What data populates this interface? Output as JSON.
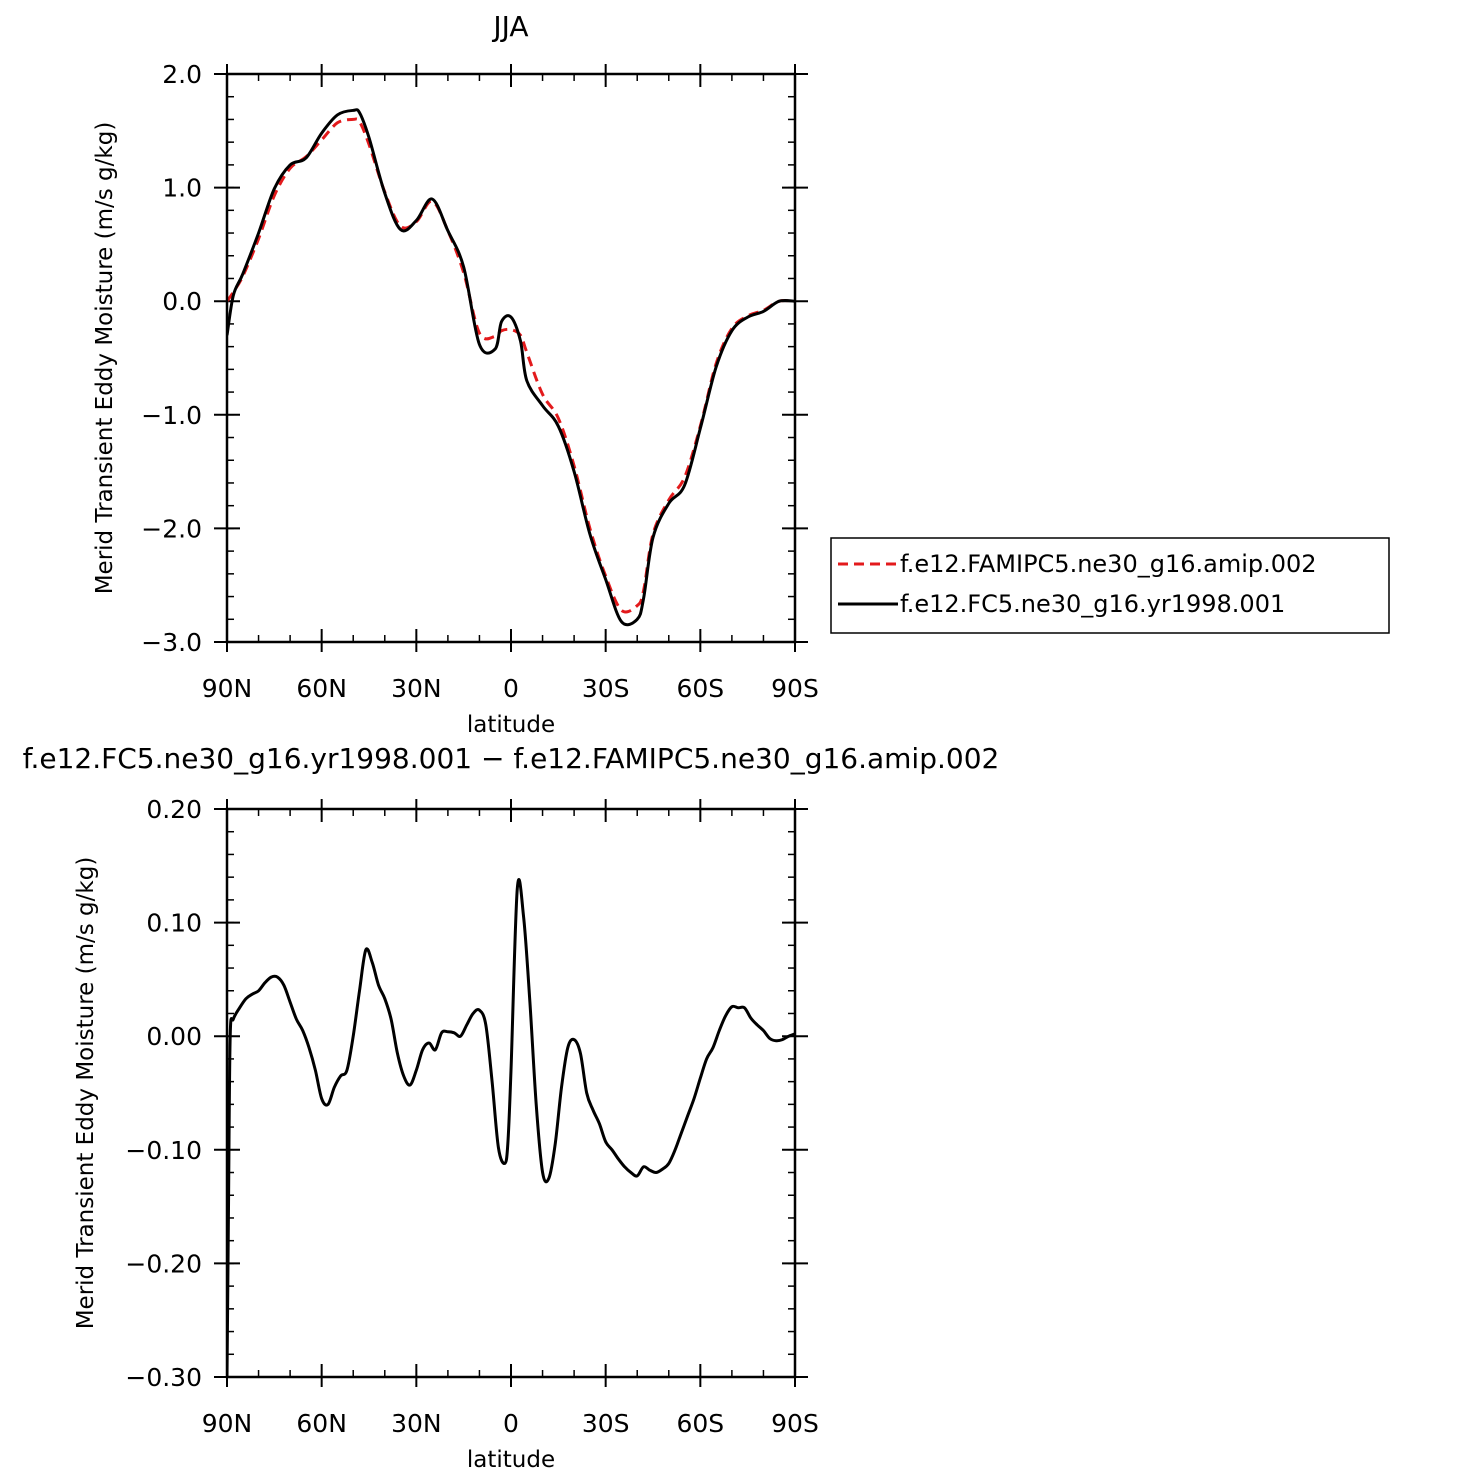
{
  "chart_data": [
    {
      "type": "line",
      "title": "JJA",
      "xlabel": "latitude",
      "ylabel": "Merid Transient Eddy Moisture (m/s g/kg)",
      "xlim": [
        90,
        -90
      ],
      "ylim": [
        -3.0,
        2.0
      ],
      "x_ticks": [
        90,
        60,
        30,
        0,
        -30,
        -60,
        -90
      ],
      "x_tick_labels": [
        "90N",
        "60N",
        "30N",
        "0",
        "30S",
        "60S",
        "90S"
      ],
      "y_ticks": [
        2.0,
        1.0,
        0.0,
        -1.0,
        -2.0,
        -3.0
      ],
      "y_tick_labels": [
        "2.0",
        "1.0",
        "0.0",
        "−1.0",
        "−2.0",
        "−3.0"
      ],
      "grid": false,
      "legend_position": "right",
      "series": [
        {
          "name": "f.e12.FAMIPC5.ne30_g16.amip.002",
          "color": "#e31a1c",
          "dash": "dashed",
          "x": [
            90,
            88,
            85,
            80,
            75,
            70,
            65,
            60,
            55,
            50,
            48,
            45,
            40,
            35,
            30,
            25,
            20,
            15,
            10,
            5,
            3,
            0,
            -3,
            -5,
            -10,
            -15,
            -20,
            -25,
            -30,
            -35,
            -40,
            -42,
            -45,
            -50,
            -55,
            -60,
            -65,
            -70,
            -75,
            -80,
            -85,
            -90
          ],
          "y": [
            0.0,
            0.08,
            0.22,
            0.55,
            0.93,
            1.17,
            1.27,
            1.42,
            1.57,
            1.6,
            1.58,
            1.38,
            0.96,
            0.66,
            0.7,
            0.88,
            0.62,
            0.25,
            -0.28,
            -0.31,
            -0.26,
            -0.25,
            -0.3,
            -0.45,
            -0.82,
            -1.03,
            -1.45,
            -2.0,
            -2.42,
            -2.72,
            -2.68,
            -2.55,
            -2.05,
            -1.75,
            -1.55,
            -1.1,
            -0.55,
            -0.24,
            -0.13,
            -0.08,
            0.0,
            0.0
          ]
        },
        {
          "name": "f.e12.FC5.ne30_g16.yr1998.001",
          "color": "#000000",
          "dash": "solid",
          "x": [
            90,
            88,
            85,
            80,
            75,
            70,
            65,
            60,
            55,
            50,
            48,
            45,
            40,
            35,
            30,
            25,
            20,
            15,
            10,
            5,
            3,
            0,
            -3,
            -5,
            -10,
            -15,
            -20,
            -25,
            -30,
            -35,
            -40,
            -42,
            -45,
            -50,
            -55,
            -60,
            -65,
            -70,
            -75,
            -80,
            -85,
            -90
          ],
          "y": [
            -0.3,
            0.05,
            0.24,
            0.6,
            0.99,
            1.2,
            1.26,
            1.48,
            1.64,
            1.68,
            1.66,
            1.44,
            0.95,
            0.63,
            0.71,
            0.9,
            0.62,
            0.3,
            -0.38,
            -0.42,
            -0.18,
            -0.14,
            -0.35,
            -0.7,
            -0.92,
            -1.1,
            -1.5,
            -2.05,
            -2.45,
            -2.82,
            -2.8,
            -2.62,
            -2.08,
            -1.78,
            -1.62,
            -1.12,
            -0.58,
            -0.26,
            -0.14,
            -0.09,
            0.0,
            0.0
          ]
        }
      ]
    },
    {
      "type": "line",
      "title": "f.e12.FC5.ne30_g16.yr1998.001 − f.e12.FAMIPC5.ne30_g16.amip.002",
      "xlabel": "latitude",
      "ylabel": "Merid Transient Eddy Moisture (m/s g/kg)",
      "xlim": [
        90,
        -90
      ],
      "ylim": [
        -0.3,
        0.2
      ],
      "x_ticks": [
        90,
        60,
        30,
        0,
        -30,
        -60,
        -90
      ],
      "x_tick_labels": [
        "90N",
        "60N",
        "30N",
        "0",
        "30S",
        "60S",
        "90S"
      ],
      "y_ticks": [
        0.2,
        0.1,
        0.0,
        -0.1,
        -0.2,
        -0.3
      ],
      "y_tick_labels": [
        "0.20",
        "0.10",
        "0.00",
        "−0.10",
        "−0.20",
        "−0.30"
      ],
      "grid": false,
      "series": [
        {
          "color": "#000000",
          "dash": "solid",
          "x": [
            90,
            89.5,
            89,
            88,
            86,
            84,
            82,
            80,
            78,
            76,
            74,
            72,
            70,
            68,
            66,
            64,
            62,
            60,
            58,
            56,
            54,
            52,
            50,
            48,
            46,
            44,
            42,
            40,
            38,
            36,
            34,
            32,
            30,
            28,
            26,
            24,
            22,
            20,
            18,
            16,
            14,
            12,
            10,
            8,
            6,
            4,
            2,
            1,
            0,
            -2,
            -4,
            -6,
            -8,
            -10,
            -12,
            -14,
            -16,
            -18,
            -20,
            -22,
            -24,
            -26,
            -28,
            -30,
            -32,
            -34,
            -36,
            -38,
            -40,
            -42,
            -44,
            -46,
            -48,
            -50,
            -52,
            -54,
            -56,
            -58,
            -60,
            -62,
            -64,
            -66,
            -68,
            -70,
            -72,
            -74,
            -76,
            -78,
            -80,
            -82,
            -84,
            -86,
            -88,
            -90
          ],
          "y": [
            -0.3,
            -0.14,
            0.0,
            0.015,
            0.025,
            0.033,
            0.037,
            0.04,
            0.047,
            0.052,
            0.052,
            0.045,
            0.03,
            0.015,
            0.005,
            -0.01,
            -0.03,
            -0.055,
            -0.06,
            -0.045,
            -0.035,
            -0.03,
            0.0,
            0.04,
            0.076,
            0.065,
            0.045,
            0.033,
            0.015,
            -0.015,
            -0.035,
            -0.043,
            -0.03,
            -0.012,
            -0.006,
            -0.012,
            0.003,
            0.004,
            0.003,
            0.0,
            0.01,
            0.02,
            0.023,
            0.01,
            -0.04,
            -0.098,
            -0.112,
            -0.095,
            -0.03,
            0.13,
            0.105,
            0.03,
            -0.06,
            -0.12,
            -0.125,
            -0.095,
            -0.045,
            -0.01,
            -0.003,
            -0.015,
            -0.05,
            -0.065,
            -0.077,
            -0.093,
            -0.1,
            -0.108,
            -0.115,
            -0.12,
            -0.123,
            -0.115,
            -0.118,
            -0.12,
            -0.117,
            -0.112,
            -0.1,
            -0.085,
            -0.07,
            -0.055,
            -0.037,
            -0.02,
            -0.01,
            0.005,
            0.018,
            0.026,
            0.025,
            0.025,
            0.016,
            0.01,
            0.005,
            -0.002,
            -0.004,
            -0.003,
            0.0,
            0.002
          ]
        }
      ]
    }
  ]
}
